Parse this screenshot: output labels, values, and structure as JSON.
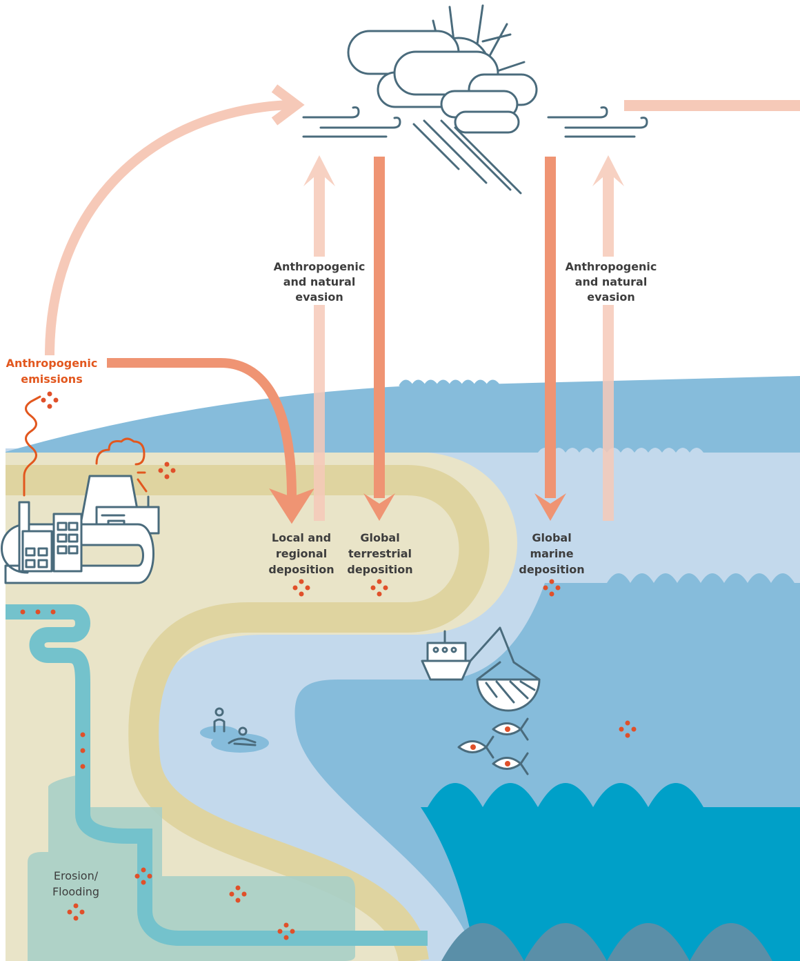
{
  "labels": {
    "evasion_terrestrial": [
      "Anthropogenic",
      "and natural",
      "evasion"
    ],
    "evasion_marine": [
      "Anthropogenic",
      "and natural",
      "evasion"
    ],
    "emissions": [
      "Anthropogenic",
      "emissions"
    ],
    "local_deposition": [
      "Local and",
      "regional",
      "deposition"
    ],
    "terrestrial_deposition": [
      "Global",
      "terrestrial",
      "deposition"
    ],
    "marine_deposition": [
      "Global",
      "marine",
      "deposition"
    ],
    "erosion": [
      "Erosion/",
      "Flooding"
    ]
  }
}
